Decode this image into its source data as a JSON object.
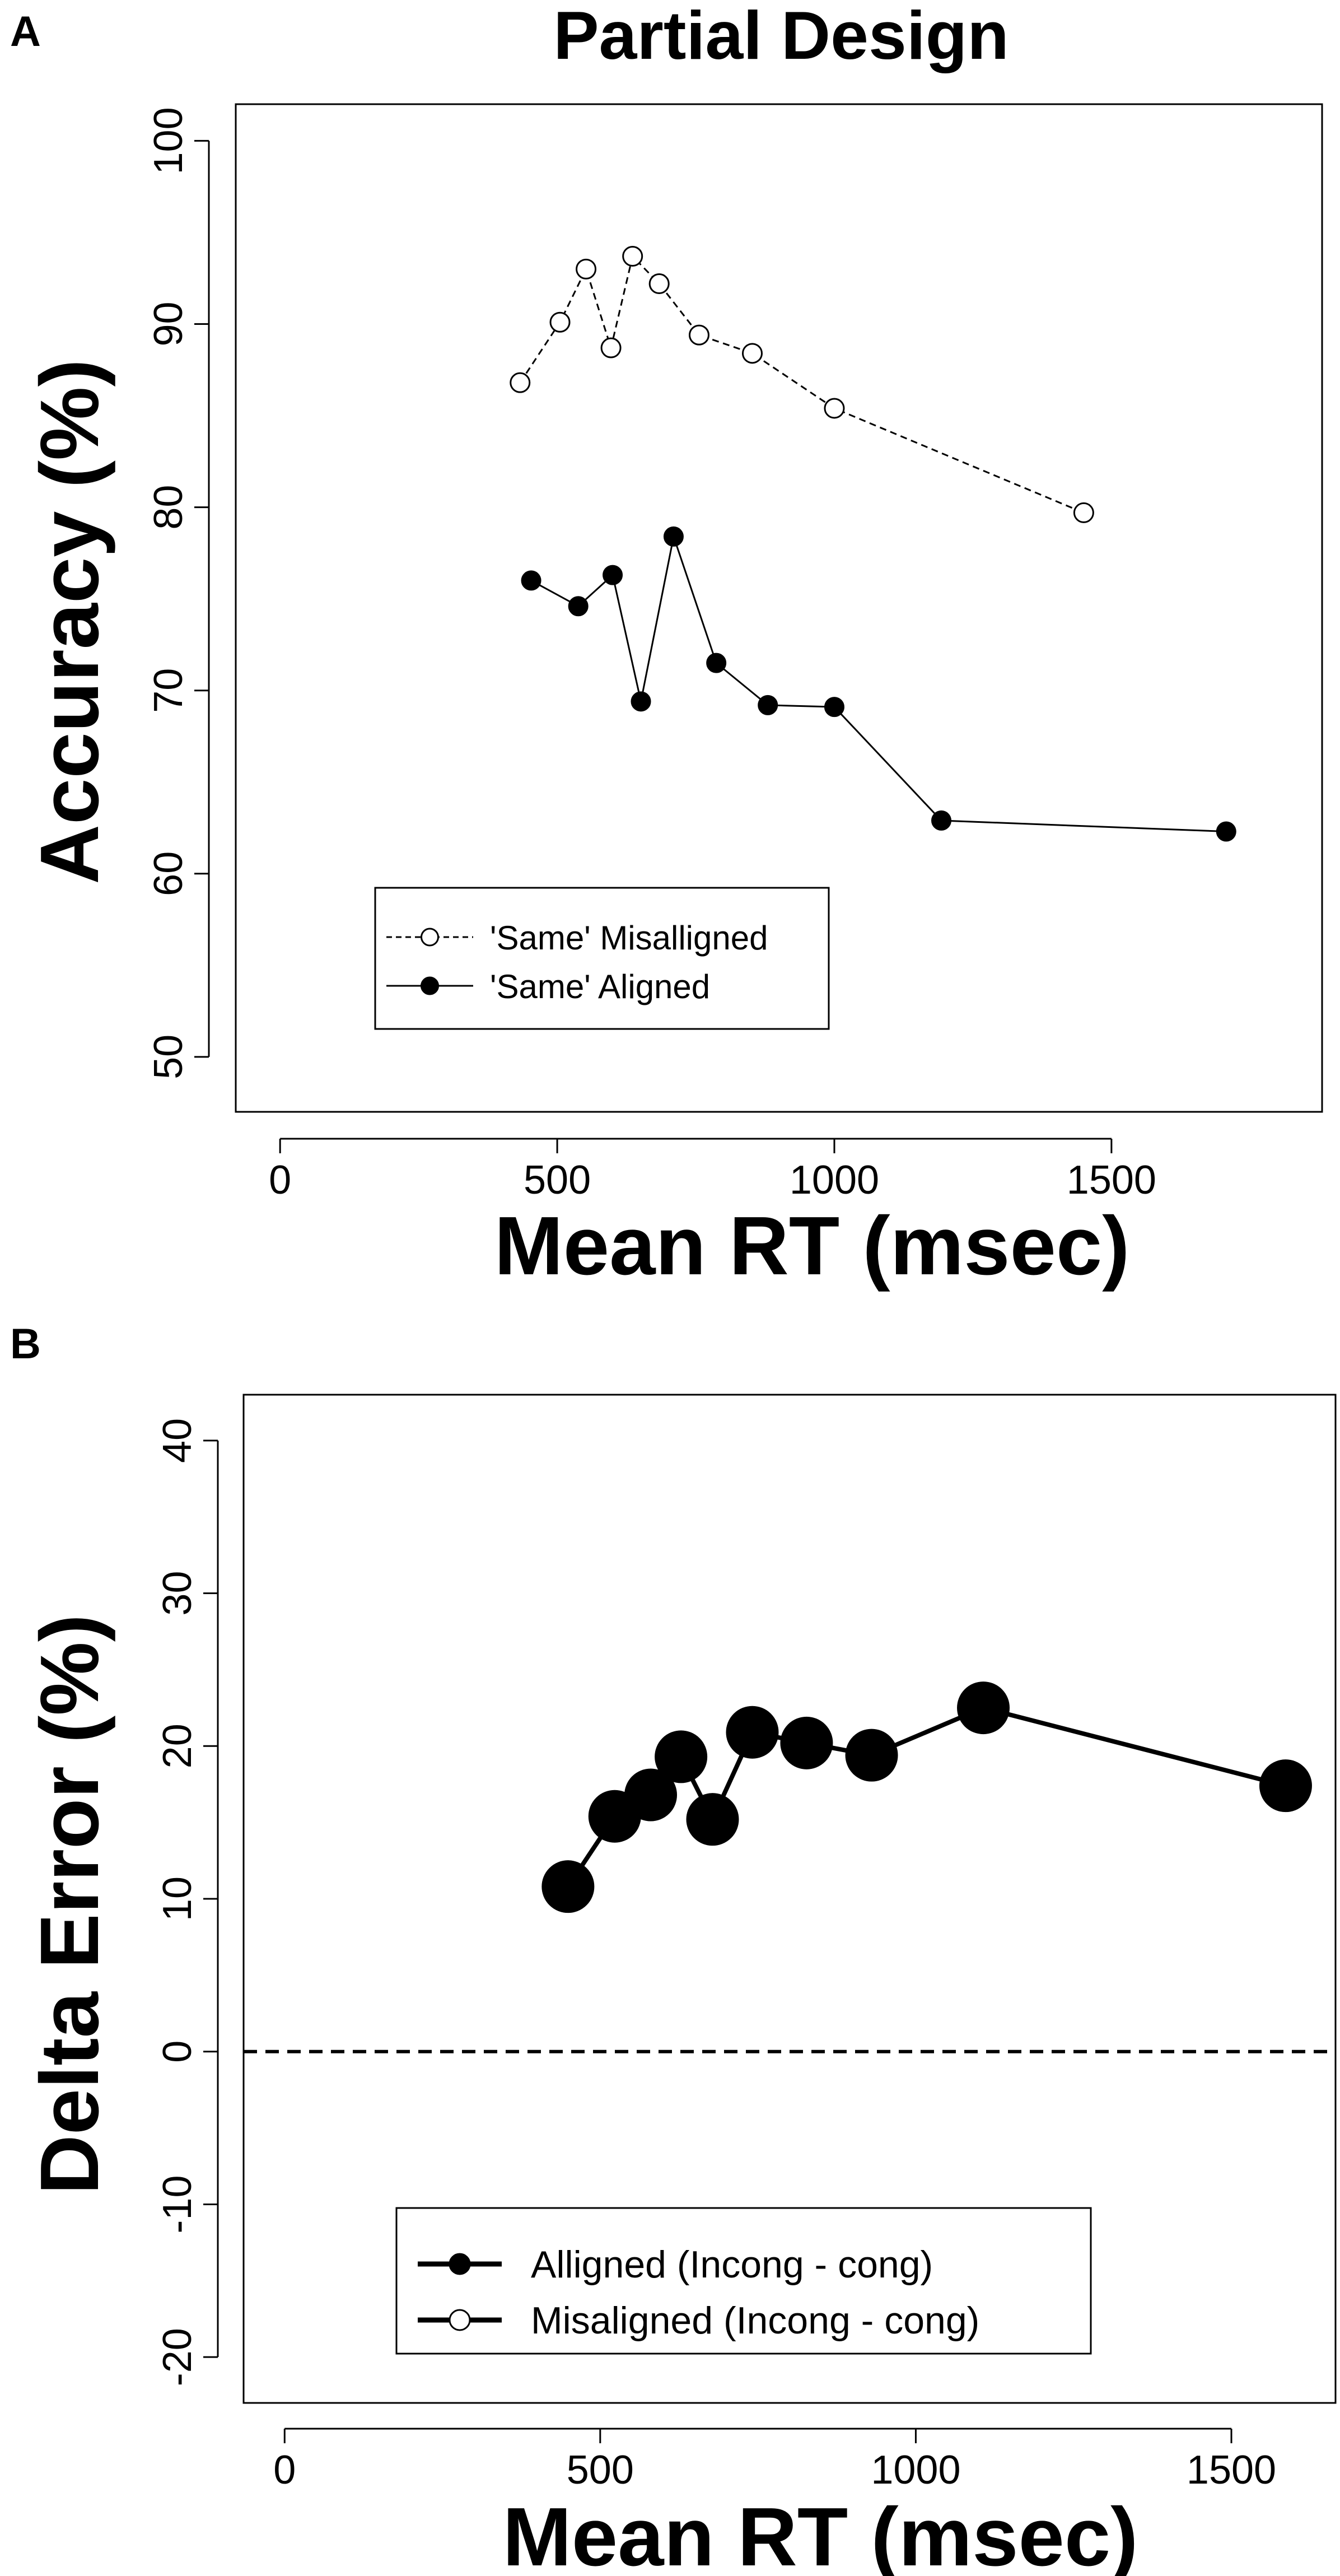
{
  "chart_data": [
    {
      "panel": "A",
      "type": "line",
      "title": "Partial Design",
      "xlabel": "Mean RT (msec)",
      "ylabel": "Accuracy (%)",
      "xlim": [
        -80,
        1880
      ],
      "ylim": [
        47,
        102
      ],
      "xticks": [
        0,
        500,
        1000,
        1500
      ],
      "yticks": [
        50,
        60,
        70,
        80,
        90,
        100
      ],
      "series": [
        {
          "name": "'Same' Misalligned",
          "style": "dashed",
          "marker": "open",
          "x": [
            433,
            505,
            552,
            597,
            636,
            684,
            756,
            852,
            1000,
            1450
          ],
          "y": [
            86.8,
            90.1,
            93.0,
            88.7,
            93.7,
            92.2,
            89.4,
            88.4,
            85.4,
            79.7
          ]
        },
        {
          "name": "'Same' Aligned",
          "style": "solid",
          "marker": "filled",
          "x": [
            453,
            538,
            600,
            651,
            710,
            787,
            880,
            1000,
            1193,
            1707
          ],
          "y": [
            76.0,
            74.6,
            76.3,
            69.4,
            78.4,
            71.5,
            69.2,
            69.1,
            62.9,
            62.3
          ]
        }
      ],
      "legend": "bottom-left"
    },
    {
      "panel": "B",
      "type": "line",
      "title": "",
      "xlabel": "Mean RT (msec)",
      "ylabel": "Delta Error (%)",
      "xlim": [
        -65,
        1665
      ],
      "ylim": [
        -23,
        43
      ],
      "xticks": [
        0,
        500,
        1000,
        1500
      ],
      "yticks": [
        -20,
        -10,
        0,
        10,
        20,
        30,
        40
      ],
      "reference_line": 0,
      "series": [
        {
          "name": "Alligned (Incong - cong)",
          "style": "solid",
          "marker": "filled",
          "x": [
            449,
            523,
            580,
            628,
            678,
            741,
            827,
            930,
            1107,
            1586
          ],
          "y": [
            10.8,
            15.4,
            16.8,
            19.3,
            15.2,
            20.9,
            20.2,
            19.4,
            22.5,
            17.4
          ]
        },
        {
          "name": "Misaligned (Incong - cong)",
          "style": "solid",
          "marker": "open",
          "x": [],
          "y": []
        }
      ],
      "legend": "bottom-center"
    }
  ],
  "panel_labels": [
    "A",
    "B"
  ]
}
